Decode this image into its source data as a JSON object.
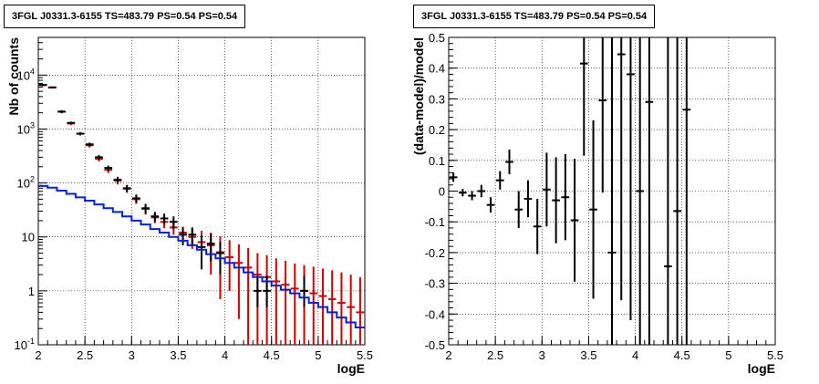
{
  "chart_data": [
    {
      "type": "step+errorbar",
      "title": "3FGL J0331.3-6155 TS=483.79 PS=0.54 PS=0.54",
      "xlabel": "logE",
      "ylabel": "Nb of counts",
      "xlim": [
        2,
        5.5
      ],
      "ylim": [
        0.1,
        50000
      ],
      "yscale": "log",
      "grid": true,
      "x_ticks": [
        "2",
        "2.5",
        "3",
        "3.5",
        "4",
        "4.5",
        "5",
        "5.5"
      ],
      "y_ticks": [
        {
          "value": 0.1,
          "label": "10",
          "exp": "-1"
        },
        {
          "value": 1,
          "label": "1",
          "exp": ""
        },
        {
          "value": 10,
          "label": "10",
          "exp": ""
        },
        {
          "value": 100,
          "label": "10",
          "exp": "2"
        },
        {
          "value": 1000,
          "label": "10",
          "exp": "3"
        },
        {
          "value": 10000,
          "label": "10",
          "exp": "4"
        }
      ],
      "bin_width": 0.1,
      "series": [
        {
          "color": "#cc0000",
          "style": "errorbar",
          "x": [
            2.05,
            2.15,
            2.25,
            2.35,
            2.45,
            2.55,
            2.65,
            2.75,
            2.85,
            2.95,
            3.05,
            3.15,
            3.25,
            3.35,
            3.45,
            3.55,
            3.65,
            3.75,
            3.85,
            3.95,
            4.05,
            4.15,
            4.25,
            4.35,
            4.45,
            4.55,
            4.65,
            4.75,
            4.85,
            4.95,
            5.05,
            5.15,
            5.25,
            5.35,
            5.45
          ],
          "y": [
            6500,
            5900,
            2100,
            1270,
            820,
            500,
            280,
            175,
            110,
            78,
            50,
            33,
            23,
            19,
            15,
            12,
            10,
            8,
            7,
            5.2,
            4.2,
            3.3,
            2.7,
            2.0,
            1.8,
            1.5,
            1.3,
            1.1,
            1.0,
            0.9,
            0.8,
            0.7,
            0.6,
            0.5,
            0.4
          ],
          "err_low": [
            300,
            280,
            150,
            90,
            60,
            45,
            30,
            22,
            16,
            12,
            9,
            7,
            5,
            4.5,
            4,
            3.5,
            4,
            5,
            5,
            4.5,
            3.2,
            3,
            2.6,
            1.95,
            1.75,
            1.45,
            1.25,
            1.05,
            0.95,
            0.85,
            0.75,
            0.65,
            0.55,
            0.45,
            0.35
          ],
          "err_high": [
            300,
            280,
            150,
            90,
            60,
            45,
            30,
            22,
            16,
            12,
            9,
            7,
            5,
            4.5,
            4,
            3.5,
            4,
            5,
            5,
            5,
            4.5,
            4,
            3.5,
            3,
            2.8,
            2.5,
            2.3,
            2.1,
            2.0,
            1.9,
            1.8,
            1.7,
            1.6,
            1.5,
            1.4
          ]
        },
        {
          "color": "#000000",
          "style": "errorbar",
          "x": [
            2.05,
            2.15,
            2.25,
            2.35,
            2.45,
            2.55,
            2.65,
            2.75,
            2.85,
            2.95,
            3.05,
            3.15,
            3.25,
            3.35,
            3.45,
            3.55,
            3.65,
            3.75,
            3.85,
            3.95,
            4.35,
            4.45,
            4.85
          ],
          "y": [
            6600,
            5900,
            2100,
            1300,
            820,
            520,
            300,
            190,
            115,
            80,
            52,
            34,
            24,
            22,
            19,
            11,
            11,
            6.5,
            7.5,
            5,
            1,
            1,
            1
          ],
          "err_low": [
            200,
            180,
            100,
            70,
            50,
            40,
            28,
            20,
            15,
            12,
            9,
            7,
            5,
            5,
            5,
            4,
            4,
            4,
            4,
            3,
            0.5,
            0.5,
            0.5
          ],
          "err_high": [
            200,
            180,
            100,
            70,
            50,
            40,
            28,
            20,
            15,
            12,
            9,
            7,
            5,
            5,
            5,
            4,
            4,
            4,
            4,
            3,
            0.9,
            0.9,
            0.9
          ]
        },
        {
          "color": "#0022dd",
          "style": "step",
          "x": [
            2.05,
            2.15,
            2.25,
            2.35,
            2.45,
            2.55,
            2.65,
            2.75,
            2.85,
            2.95,
            3.05,
            3.15,
            3.25,
            3.35,
            3.45,
            3.55,
            3.65,
            3.75,
            3.85,
            3.95,
            4.05,
            4.15,
            4.25,
            4.35,
            4.45,
            4.55,
            4.65,
            4.75,
            4.85,
            4.95,
            5.05,
            5.15,
            5.25,
            5.35,
            5.45
          ],
          "y": [
            88,
            82,
            72,
            63,
            54,
            47,
            40,
            34,
            29,
            24,
            20,
            17,
            14,
            12,
            10,
            8.5,
            7,
            5.8,
            4.8,
            4,
            3.3,
            2.7,
            2.2,
            1.8,
            1.5,
            1.25,
            1.05,
            0.9,
            0.75,
            0.6,
            0.5,
            0.4,
            0.32,
            0.26,
            0.21
          ]
        }
      ]
    },
    {
      "type": "errorbar",
      "title": "3FGL J0331.3-6155 TS=483.79 PS=0.54 PS=0.54",
      "xlabel": "logE",
      "ylabel": "(data-model)/model",
      "xlim": [
        2,
        5.5
      ],
      "ylim": [
        -0.5,
        0.5
      ],
      "grid": true,
      "x_ticks": [
        "2",
        "2.5",
        "3",
        "3.5",
        "4",
        "4.5",
        "5",
        "5.5"
      ],
      "y_ticks": [
        "-0.5",
        "-0.4",
        "-0.3",
        "-0.2",
        "-0.1",
        "0",
        "0.1",
        "0.2",
        "0.3",
        "0.4",
        "0.5"
      ],
      "bin_width": 0.1,
      "series": [
        {
          "color": "#000000",
          "x": [
            2.05,
            2.15,
            2.25,
            2.35,
            2.45,
            2.55,
            2.65,
            2.75,
            2.85,
            2.95,
            3.05,
            3.15,
            3.25,
            3.35,
            3.45,
            3.55,
            3.65,
            3.75,
            3.85,
            3.95,
            4.05,
            4.15,
            4.35,
            4.45,
            4.55
          ],
          "y": [
            0.045,
            -0.005,
            -0.015,
            0.0,
            -0.045,
            0.035,
            0.095,
            -0.06,
            -0.025,
            -0.115,
            0.005,
            -0.03,
            -0.02,
            -0.095,
            0.415,
            -0.06,
            0.295,
            -0.2,
            0.445,
            0.38,
            0.0,
            0.29,
            -0.245,
            -0.065,
            0.265
          ],
          "err": [
            0.015,
            0.012,
            0.015,
            0.02,
            0.025,
            0.03,
            0.04,
            0.06,
            0.06,
            0.09,
            0.12,
            0.14,
            0.14,
            0.2,
            0.3,
            0.29,
            0.3,
            0.8,
            0.8,
            0.8,
            0.8,
            0.8,
            0.8,
            0.8,
            0.8
          ]
        }
      ]
    }
  ]
}
